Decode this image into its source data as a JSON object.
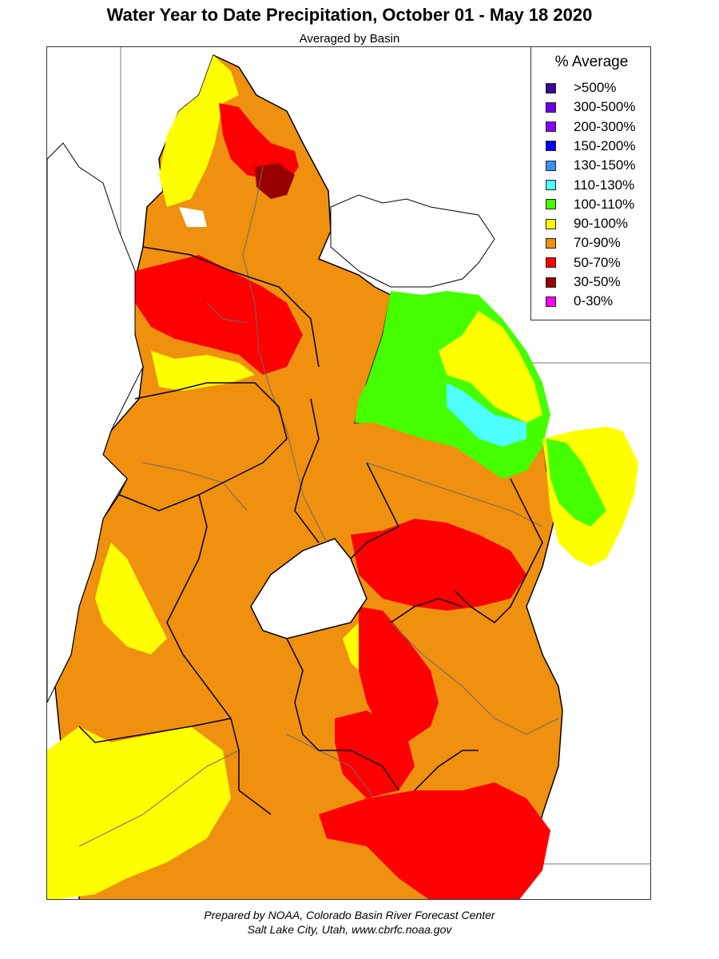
{
  "header": {
    "title": "Water Year to Date Precipitation, October 01  - May 18 2020",
    "subtitle": "Averaged by Basin"
  },
  "legend": {
    "title": "% Average",
    "items": [
      {
        "label": ">500%",
        "color": "#3d0099"
      },
      {
        "label": "300-500%",
        "color": "#6a00e6"
      },
      {
        "label": "200-300%",
        "color": "#8a00ff"
      },
      {
        "label": "150-200%",
        "color": "#0000ff"
      },
      {
        "label": "130-150%",
        "color": "#3a8fff"
      },
      {
        "label": "110-130%",
        "color": "#4dffff"
      },
      {
        "label": "100-110%",
        "color": "#44ff00"
      },
      {
        "label": "90-100%",
        "color": "#ffff00"
      },
      {
        "label": "70-90%",
        "color": "#f0900f"
      },
      {
        "label": "50-70%",
        "color": "#ff0000"
      },
      {
        "label": "30-50%",
        "color": "#990000"
      },
      {
        "label": "0-30%",
        "color": "#ff00ff"
      }
    ]
  },
  "footer": {
    "line1": "Prepared by NOAA, Colorado Basin River Forecast Center",
    "line2": "Salt Lake City, Utah, www.cbrfc.noaa.gov"
  }
}
